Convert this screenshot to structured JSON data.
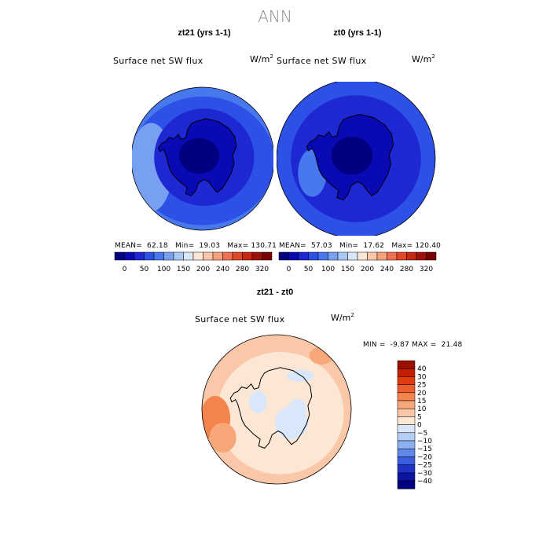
{
  "page": {
    "suptitle": "ANN"
  },
  "chart_data": [
    {
      "type": "heatmap",
      "projection": "south-polar-stereographic",
      "title": "zt21 (yrs 1-1)",
      "variable": "Surface net SW flux",
      "units": "W/m",
      "units_exp": "2",
      "stats": {
        "mean_label": "MEAN=",
        "mean": "62.18",
        "min_label": "Min=",
        "min": "19.03",
        "max_label": "Max=",
        "max": "130.71"
      },
      "colorbar": {
        "orientation": "horizontal",
        "levels": [
          "0",
          "50",
          "100",
          "150",
          "200",
          "240",
          "280",
          "320"
        ],
        "colors": [
          "#000080",
          "#0a0ab4",
          "#1e28d2",
          "#2d50e6",
          "#4878ee",
          "#78a0f0",
          "#a8c8f6",
          "#d8e8fa",
          "#fde6d6",
          "#fcc8a8",
          "#f8a07a",
          "#f07050",
          "#e04828",
          "#c82810",
          "#a01008",
          "#780000"
        ]
      },
      "field_summary": "Weak shortwave over the Antarctic continent (about 0-50 W/m2), increasing to about 100-150 W/m2 toward the Southern Ocean edge."
    },
    {
      "type": "heatmap",
      "projection": "south-polar-stereographic",
      "title": "zt0 (yrs 1-1)",
      "variable": "Surface net SW flux",
      "units": "W/m",
      "units_exp": "2",
      "stats": {
        "mean_label": "MEAN=",
        "mean": "57.03",
        "min_label": "Min=",
        "min": "17.62",
        "max_label": "Max=",
        "max": "120.40"
      },
      "colorbar": {
        "orientation": "horizontal",
        "levels": [
          "0",
          "50",
          "100",
          "150",
          "200",
          "240",
          "280",
          "320"
        ],
        "colors": [
          "#000080",
          "#0a0ab4",
          "#1e28d2",
          "#2d50e6",
          "#4878ee",
          "#78a0f0",
          "#a8c8f6",
          "#d8e8fa",
          "#fde6d6",
          "#fcc8a8",
          "#f8a07a",
          "#f07050",
          "#e04828",
          "#c82810",
          "#a01008",
          "#780000"
        ]
      },
      "field_summary": "Similar pattern to zt21 with slightly lower values over the ocean (mostly 50-100 W/m2)."
    },
    {
      "type": "heatmap",
      "projection": "south-polar-stereographic",
      "title": "zt21 - zt0",
      "variable": "Surface net SW flux",
      "units": "W/m",
      "units_exp": "2",
      "stats": {
        "min_label": "MIN =",
        "min": "-9.87",
        "max_label": "MAX =",
        "max": "21.48"
      },
      "colorbar": {
        "orientation": "vertical",
        "levels": [
          "40",
          "30",
          "25",
          "20",
          "15",
          "10",
          "5",
          "0",
          "−5",
          "−10",
          "−15",
          "−20",
          "−25",
          "−30",
          "−40"
        ],
        "colors": [
          "#9c0e00",
          "#c41e00",
          "#e03c0c",
          "#f05c2c",
          "#f4844e",
          "#f8a878",
          "#fac8a8",
          "#fce6d4",
          "#d8e8fa",
          "#b4cef6",
          "#8cb0f0",
          "#6088e8",
          "#3a5ee0",
          "#1e32c8",
          "#0a14a0",
          "#000080"
        ]
      },
      "field_summary": "Mostly small positive differences (0-10 W/m2) with negative patches (-5 to 0) over East Antarctica and a local maximum (15-20) in the Pacific sector near the Antarctic Peninsula."
    }
  ]
}
